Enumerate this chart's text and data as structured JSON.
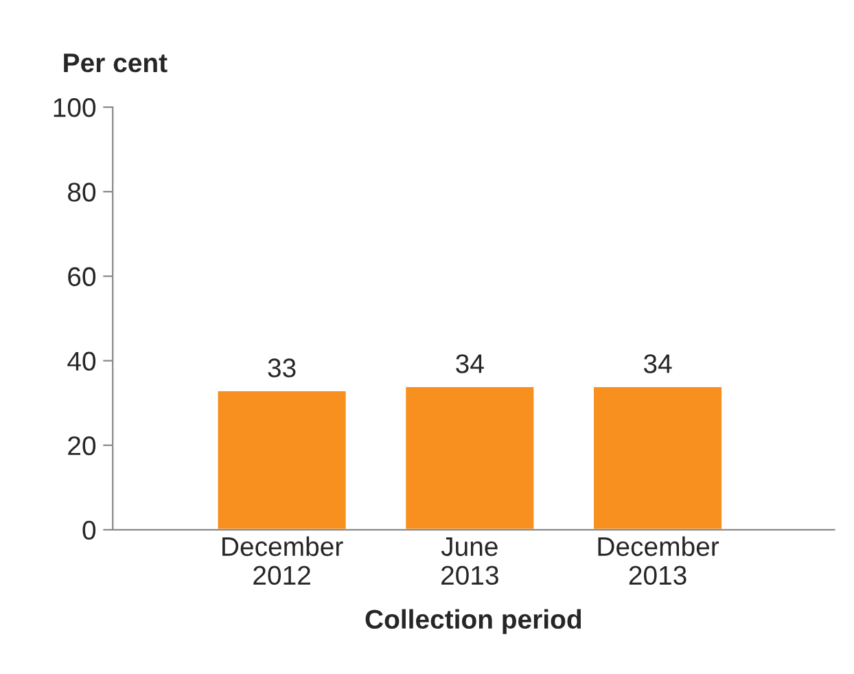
{
  "chart_data": {
    "type": "bar",
    "ylabel": "Per cent",
    "xlabel": "Collection period",
    "categories": [
      "December\n2012",
      "June\n2013",
      "December\n2013"
    ],
    "values": [
      33,
      34,
      34
    ],
    "color": "#f7901e",
    "ylim": [
      0,
      100
    ],
    "yticks": [
      0,
      20,
      40,
      60,
      80,
      100
    ],
    "grid": false,
    "data_labels": true
  }
}
